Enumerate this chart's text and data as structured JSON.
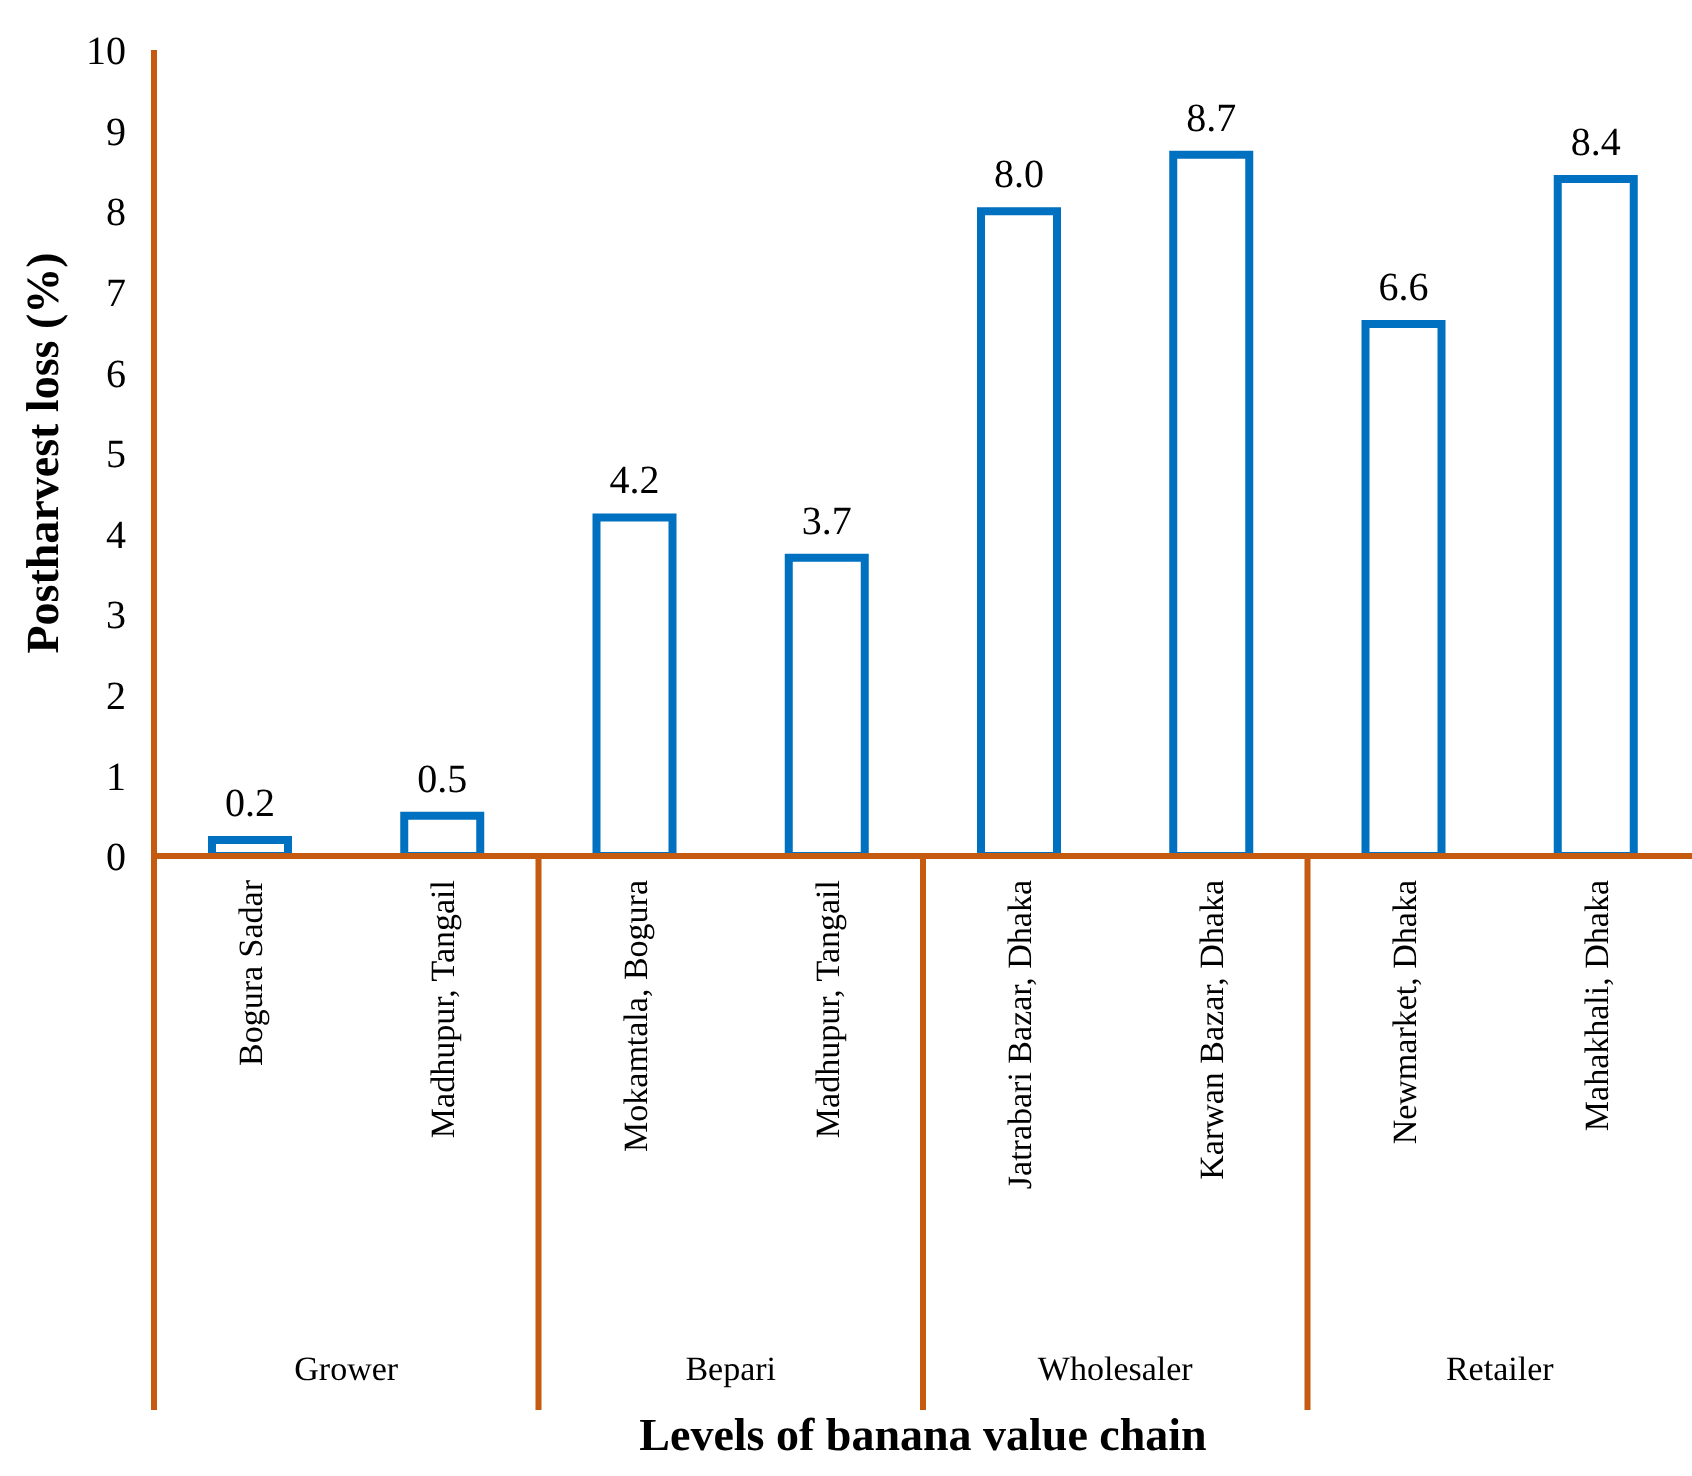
{
  "chart_data": {
    "type": "bar",
    "xlabel": "Levels of banana value chain",
    "ylabel": "Postharvest loss (%)",
    "categories": [
      "Bogura Sadar",
      "Madhupur, Tangail",
      "Mokamtala, Bogura",
      "Madhupur, Tangail",
      "Jatrabari Bazar, Dhaka",
      "Karwan Bazar, Dhaka",
      "Newmarket, Dhaka",
      "Mahakhali, Dhaka"
    ],
    "values": [
      0.2,
      0.5,
      4.2,
      3.7,
      8.0,
      8.7,
      6.6,
      8.4
    ],
    "value_labels": [
      "0.2",
      "0.5",
      "4.2",
      "3.7",
      "8.0",
      "8.7",
      "6.6",
      "8.4"
    ],
    "color": "#0070c0",
    "ylim": [
      0,
      10
    ],
    "yticks": [
      0,
      1,
      2,
      3,
      4,
      5,
      6,
      7,
      8,
      9,
      10
    ],
    "grid": false,
    "legend": false,
    "annotations": [
      "Grower",
      "Bepari",
      "Wholesaler",
      "Retailer"
    ]
  }
}
